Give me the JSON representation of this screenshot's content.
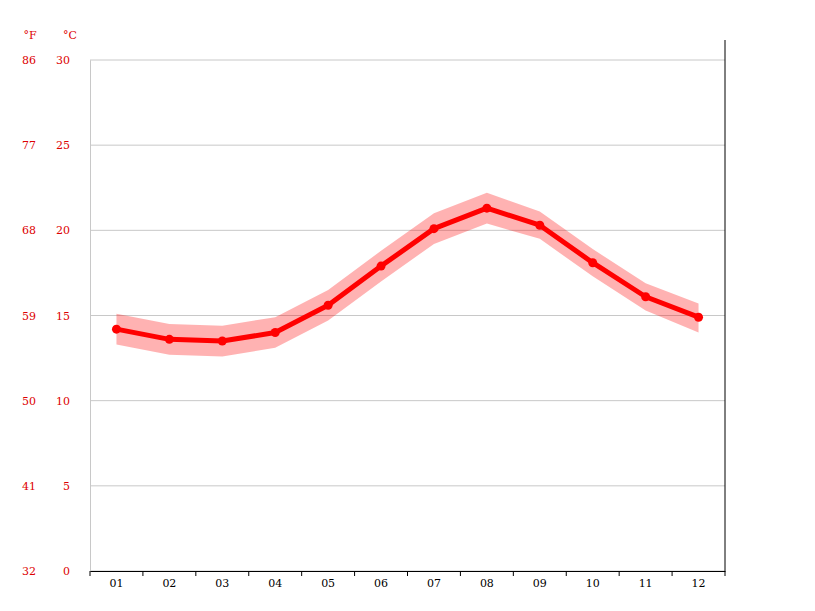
{
  "chart_data": {
    "type": "line",
    "y_label": "°C",
    "y2_label": "°F",
    "categories": [
      "01",
      "02",
      "03",
      "04",
      "05",
      "06",
      "07",
      "08",
      "09",
      "10",
      "11",
      "12"
    ],
    "series": [
      {
        "color": "#ff0000",
        "marker": "circle",
        "values": [
          14.2,
          13.6,
          13.5,
          14.0,
          15.6,
          17.9,
          20.1,
          21.3,
          20.3,
          18.1,
          16.1,
          14.9
        ],
        "lower": [
          13.3,
          12.7,
          12.6,
          13.1,
          14.7,
          17.0,
          19.2,
          20.4,
          19.5,
          17.3,
          15.3,
          14.0
        ],
        "upper": [
          15.1,
          14.5,
          14.4,
          14.9,
          16.5,
          18.8,
          21.0,
          22.2,
          21.1,
          18.9,
          16.9,
          15.7
        ]
      }
    ],
    "ylim": [
      0,
      30
    ],
    "yticks": [
      0,
      5,
      10,
      15,
      20,
      25,
      30
    ],
    "y2lim": [
      32,
      86
    ],
    "y2ticks": [
      32,
      41,
      50,
      59,
      68,
      77,
      86
    ],
    "grid": true
  }
}
